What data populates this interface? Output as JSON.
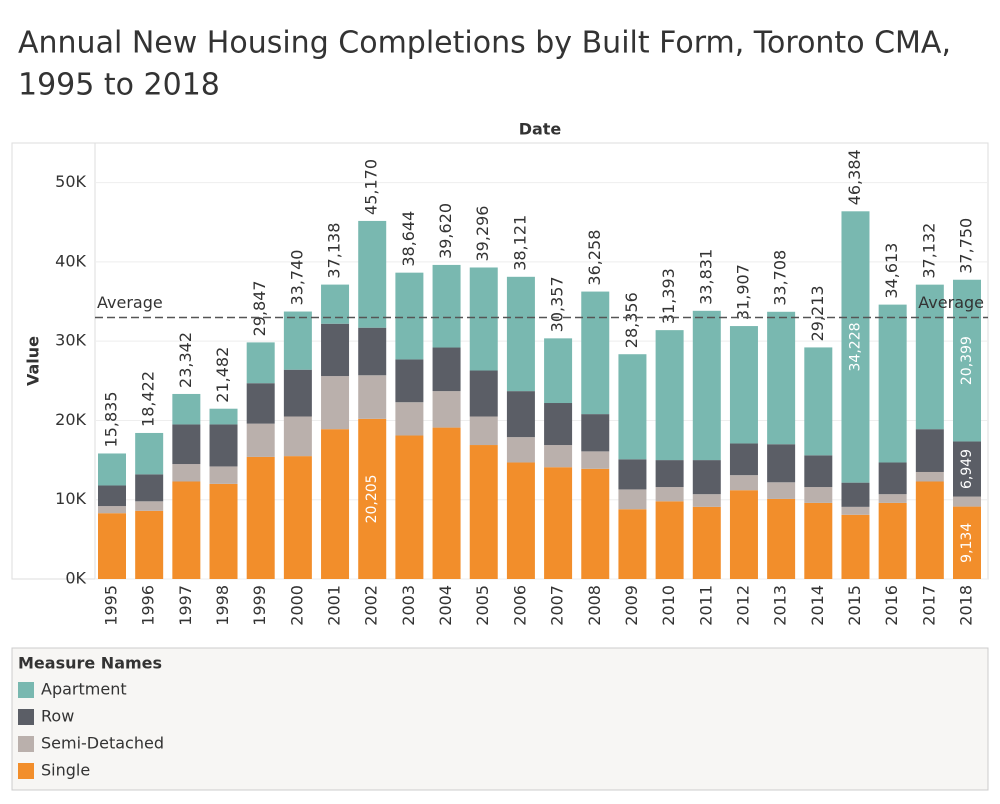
{
  "chart_data": {
    "type": "stacked_bar",
    "title": "Annual New Housing Completions by Built Form, Toronto CMA,",
    "title_line2": "1995 to 2018",
    "x_header": "Date",
    "y_label": "Value",
    "legend_title": "Measure Names",
    "categories": [
      "1995",
      "1996",
      "1997",
      "1998",
      "1999",
      "2000",
      "2001",
      "2002",
      "2003",
      "2004",
      "2005",
      "2006",
      "2007",
      "2008",
      "2009",
      "2010",
      "2011",
      "2012",
      "2013",
      "2014",
      "2015",
      "2016",
      "2017",
      "2018"
    ],
    "series": [
      {
        "name": "Single",
        "color": "#f28e2b",
        "values": [
          8300,
          8600,
          12300,
          12000,
          15400,
          15500,
          18900,
          20205,
          18100,
          19100,
          16900,
          14700,
          14100,
          13900,
          8800,
          9800,
          9100,
          11200,
          10100,
          9600,
          8100,
          9600,
          12300,
          9134
        ],
        "value_labels": [
          null,
          null,
          null,
          null,
          null,
          null,
          null,
          "20,205",
          null,
          null,
          null,
          null,
          null,
          null,
          null,
          null,
          null,
          null,
          null,
          null,
          null,
          null,
          null,
          "9,134"
        ]
      },
      {
        "name": "Semi-Detached",
        "color": "#bab0ac",
        "values": [
          900,
          1200,
          2200,
          2200,
          4200,
          5000,
          6700,
          5495,
          4200,
          4600,
          3600,
          3200,
          2800,
          2200,
          2500,
          1800,
          1600,
          1900,
          2100,
          2000,
          1000,
          1100,
          1200,
          1268
        ]
      },
      {
        "name": "Row",
        "color": "#5b5e66",
        "values": [
          2600,
          3400,
          5000,
          5300,
          5100,
          5900,
          6600,
          6000,
          5400,
          5500,
          5800,
          5800,
          5300,
          4700,
          3800,
          3400,
          4300,
          4000,
          4800,
          4000,
          3056,
          4000,
          5400,
          6949
        ],
        "value_labels": [
          null,
          null,
          null,
          null,
          null,
          null,
          null,
          null,
          null,
          null,
          null,
          null,
          null,
          null,
          null,
          null,
          null,
          null,
          null,
          null,
          null,
          null,
          null,
          "6,949"
        ]
      },
      {
        "name": "Apartment",
        "color": "#79b8b0",
        "values": [
          4035,
          5222,
          3842,
          1982,
          5147,
          7340,
          4938,
          13470,
          10944,
          10420,
          12996,
          14421,
          8157,
          15458,
          13256,
          16393,
          18831,
          14807,
          16708,
          13613,
          34228,
          19913,
          18232,
          20399
        ],
        "value_labels": [
          null,
          null,
          null,
          null,
          null,
          null,
          null,
          null,
          null,
          null,
          null,
          null,
          null,
          null,
          null,
          null,
          null,
          null,
          null,
          null,
          "34,228",
          null,
          null,
          "20,399"
        ]
      }
    ],
    "totals": [
      15835,
      18422,
      23342,
      21482,
      29847,
      33740,
      37138,
      45170,
      38644,
      39620,
      39296,
      38121,
      30357,
      36258,
      28356,
      31393,
      33831,
      31907,
      33708,
      29213,
      46384,
      34613,
      37132,
      37750
    ],
    "total_labels": [
      "15,835",
      "18,422",
      "23,342",
      "21,482",
      "29,847",
      "33,740",
      "37,138",
      "45,170",
      "38,644",
      "39,620",
      "39,296",
      "38,121",
      "30,357",
      "36,258",
      "28,356",
      "31,393",
      "33,831",
      "31,907",
      "33,708",
      "29,213",
      "46,384",
      "34,613",
      "37,132",
      "37,750"
    ],
    "reference_line": {
      "label": "Average",
      "value": 32982
    },
    "ylim": [
      0,
      55000
    ],
    "yticks": [
      {
        "value": 0,
        "label": "0K"
      },
      {
        "value": 10000,
        "label": "10K"
      },
      {
        "value": 20000,
        "label": "20K"
      },
      {
        "value": 30000,
        "label": "30K"
      },
      {
        "value": 40000,
        "label": "40K"
      },
      {
        "value": 50000,
        "label": "50K"
      }
    ],
    "grid": true,
    "legend_position": "bottom"
  }
}
